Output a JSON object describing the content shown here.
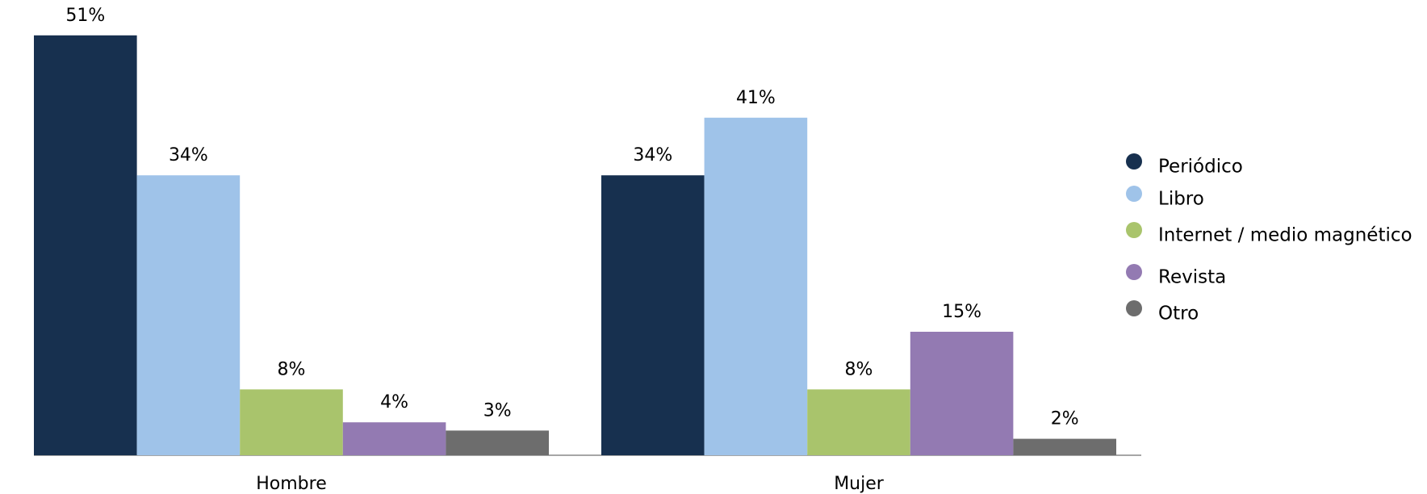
{
  "chart_data": {
    "type": "bar",
    "categories": [
      "Hombre",
      "Mujer"
    ],
    "series": [
      {
        "name": "Periódico",
        "color": "#17304f",
        "values": [
          51,
          34
        ],
        "value_labels": [
          "51%",
          "34%"
        ]
      },
      {
        "name": "Libro",
        "color": "#9fc3e9",
        "values": [
          34,
          41
        ],
        "value_labels": [
          "34%",
          "41%"
        ]
      },
      {
        "name": "Internet / medio magnético",
        "color": "#a9c46c",
        "values": [
          8,
          8
        ],
        "value_labels": [
          "8%",
          "8%"
        ]
      },
      {
        "name": "Revista",
        "color": "#937ab2",
        "values": [
          4,
          15
        ],
        "value_labels": [
          "4%",
          "15%"
        ]
      },
      {
        "name": "Otro",
        "color": "#6d6d6d",
        "values": [
          3,
          2
        ],
        "value_labels": [
          "3%",
          "2%"
        ]
      }
    ],
    "legend": "right"
  }
}
